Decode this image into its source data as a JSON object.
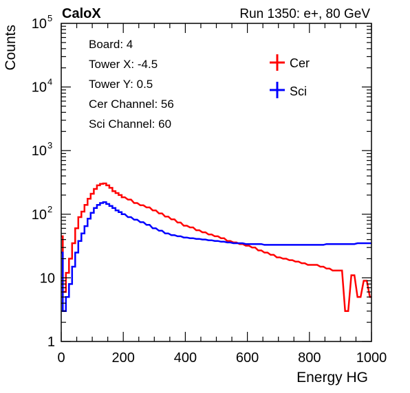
{
  "header": {
    "experiment": "CaloX",
    "run_info": "Run 1350: e+, 80 GeV"
  },
  "info_box": {
    "lines": [
      "Board: 4",
      "Tower X: -4.5",
      "Tower Y: 0.5",
      "Cer Channel: 56",
      "Sci Channel: 60"
    ]
  },
  "colors": {
    "cer": "#ff0000",
    "sci": "#0000ff",
    "axis": "#000000"
  },
  "chart_data": {
    "type": "line",
    "title": "",
    "xlabel": "Energy HG",
    "ylabel": "Counts",
    "xlim": [
      0,
      1000
    ],
    "ylim": [
      1,
      100000
    ],
    "yscale": "log",
    "grid": false,
    "legend_position": "top-right",
    "x_ticks": [
      0,
      200,
      400,
      600,
      800,
      1000
    ],
    "x_tick_labels": [
      "0",
      "200",
      "400",
      "600",
      "800",
      "1000"
    ],
    "y_ticks": [
      1,
      10,
      100,
      1000,
      10000,
      100000
    ],
    "y_tick_labels": [
      {
        "base": "1",
        "exp": ""
      },
      {
        "base": "10",
        "exp": ""
      },
      {
        "base": "10",
        "exp": "2"
      },
      {
        "base": "10",
        "exp": "3"
      },
      {
        "base": "10",
        "exp": "4"
      },
      {
        "base": "10",
        "exp": "5"
      }
    ],
    "x": [
      0,
      10,
      20,
      30,
      40,
      50,
      60,
      70,
      80,
      90,
      100,
      110,
      120,
      130,
      140,
      150,
      160,
      170,
      180,
      190,
      200,
      220,
      240,
      260,
      280,
      300,
      320,
      340,
      360,
      380,
      400,
      420,
      440,
      460,
      480,
      500,
      520,
      540,
      560,
      580,
      600,
      620,
      640,
      660,
      680,
      700,
      720,
      740,
      760,
      780,
      800,
      820,
      840,
      860,
      880,
      900,
      920,
      940,
      960,
      980,
      1000
    ],
    "series": [
      {
        "name": "Cer",
        "color": "#ff0000",
        "values": [
          45,
          6,
          12,
          20,
          35,
          60,
          90,
          110,
          140,
          175,
          210,
          250,
          285,
          300,
          305,
          285,
          260,
          230,
          215,
          200,
          185,
          170,
          150,
          138,
          128,
          115,
          103,
          92,
          83,
          74,
          66,
          62,
          56,
          52,
          48,
          45,
          42,
          38,
          36,
          34,
          32,
          30,
          27,
          25,
          23,
          21,
          20,
          19,
          18,
          17,
          16,
          16,
          15,
          14,
          13,
          13,
          3,
          11,
          5,
          9,
          5
        ]
      },
      {
        "name": "Sci",
        "color": "#0000ff",
        "values": [
          25,
          3,
          5,
          8,
          15,
          25,
          38,
          50,
          65,
          85,
          105,
          125,
          140,
          150,
          155,
          145,
          135,
          125,
          115,
          108,
          100,
          90,
          82,
          75,
          68,
          60,
          55,
          50,
          47,
          45,
          43,
          42,
          41,
          40,
          39,
          38,
          37,
          36,
          35,
          35,
          34,
          34,
          34,
          33,
          33,
          33,
          33,
          33,
          33,
          33,
          33,
          33,
          33,
          34,
          34,
          34,
          34,
          34,
          35,
          35,
          35
        ]
      }
    ]
  }
}
